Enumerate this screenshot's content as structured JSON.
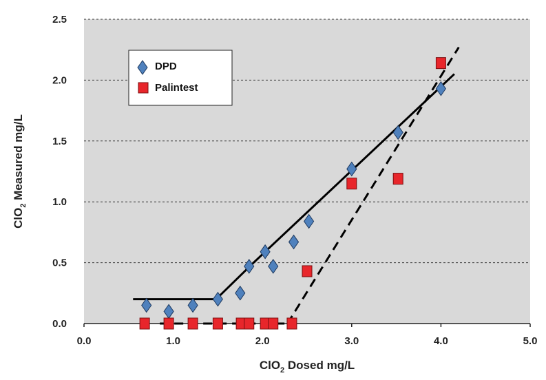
{
  "chart_data": {
    "type": "scatter",
    "xlabel_parts": [
      "ClO",
      "2",
      " Dosed mg/L"
    ],
    "ylabel_parts": [
      "ClO",
      "2",
      " Measured mg/L"
    ],
    "xlim": [
      0,
      5
    ],
    "ylim": [
      0,
      2.5
    ],
    "xticks": [
      0,
      1,
      2,
      3,
      4,
      5
    ],
    "xtick_labels": [
      "0.0",
      "1.0",
      "2.0",
      "3.0",
      "4.0",
      "5.0"
    ],
    "yticks": [
      0,
      0.5,
      1,
      1.5,
      2,
      2.5
    ],
    "ytick_labels": [
      "0.0",
      "0.5",
      "1.0",
      "1.5",
      "2.0",
      "2.5"
    ],
    "grid": "horizontal-dashed",
    "legend_position": "top-left",
    "colors": {
      "plot_bg": "#d9d9d9",
      "dpd": "#4f81bd",
      "palintest": "#e8262b",
      "line": "#000000"
    },
    "series": [
      {
        "name": "DPD",
        "marker": "diamond",
        "points": [
          [
            0.7,
            0.15
          ],
          [
            0.95,
            0.1
          ],
          [
            1.22,
            0.15
          ],
          [
            1.5,
            0.2
          ],
          [
            1.75,
            0.25
          ],
          [
            1.85,
            0.47
          ],
          [
            2.03,
            0.59
          ],
          [
            2.12,
            0.47
          ],
          [
            2.35,
            0.67
          ],
          [
            2.52,
            0.84
          ],
          [
            3.0,
            1.27
          ],
          [
            3.52,
            1.57
          ],
          [
            4.0,
            1.93
          ]
        ]
      },
      {
        "name": "Palintest",
        "marker": "square",
        "points": [
          [
            0.68,
            0.0
          ],
          [
            0.95,
            0.0
          ],
          [
            1.22,
            0.0
          ],
          [
            1.5,
            0.0
          ],
          [
            1.76,
            0.0
          ],
          [
            1.85,
            0.0
          ],
          [
            2.03,
            0.0
          ],
          [
            2.12,
            0.0
          ],
          [
            2.33,
            0.0
          ],
          [
            2.5,
            0.43
          ],
          [
            3.0,
            1.15
          ],
          [
            3.52,
            1.19
          ],
          [
            4.0,
            2.14
          ]
        ]
      }
    ],
    "trend_lines": [
      {
        "series": "DPD",
        "style": "solid",
        "points": [
          [
            0.55,
            0.2
          ],
          [
            1.48,
            0.2
          ],
          [
            1.9,
            0.5
          ],
          [
            4.15,
            2.05
          ]
        ]
      },
      {
        "series": "Palintest",
        "style": "dashed",
        "points": [
          [
            0.85,
            0.0
          ],
          [
            2.3,
            0.0
          ]
        ]
      },
      {
        "series": "Palintest",
        "style": "dashed",
        "points": [
          [
            2.28,
            0.0
          ],
          [
            4.2,
            2.27
          ]
        ]
      }
    ]
  }
}
